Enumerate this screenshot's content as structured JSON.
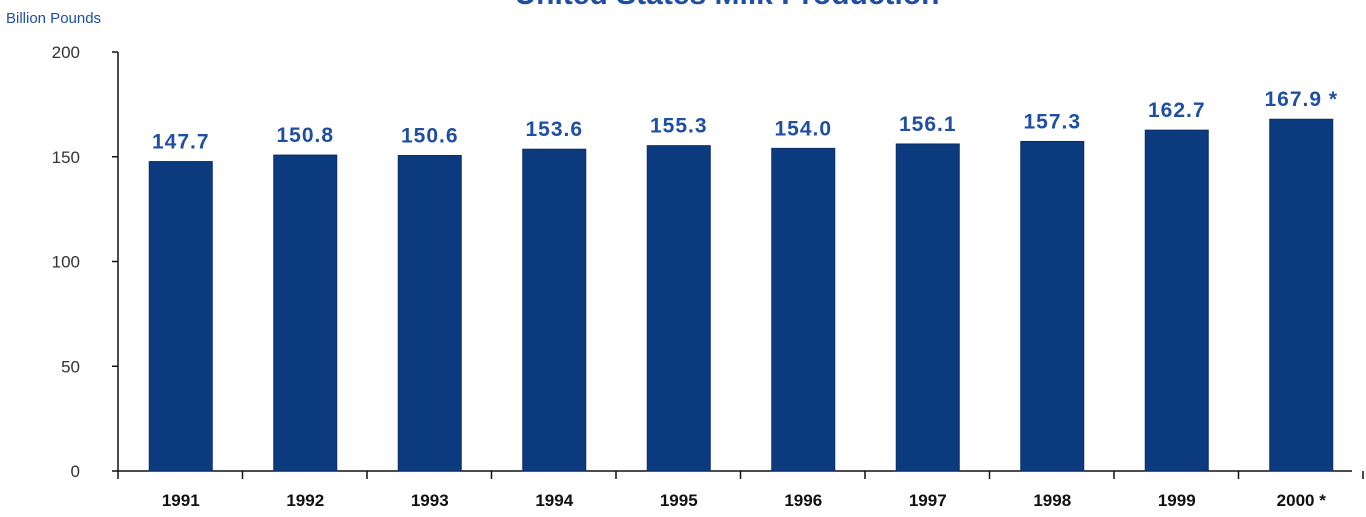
{
  "chart_data": {
    "type": "bar",
    "title": "United States Milk Production",
    "ylabel": "Billion Pounds",
    "xlabel": "",
    "categories": [
      "1991",
      "1992",
      "1993",
      "1994",
      "1995",
      "1996",
      "1997",
      "1998",
      "1999",
      "2000 *"
    ],
    "values": [
      147.7,
      150.8,
      150.6,
      153.6,
      155.3,
      154.0,
      156.1,
      157.3,
      162.7,
      167.9
    ],
    "data_labels": [
      "147.7",
      "150.8",
      "150.6",
      "153.6",
      "155.3",
      "154.0",
      "156.1",
      "157.3",
      "162.7",
      "167.9 *"
    ],
    "ylim": [
      0,
      200
    ],
    "yticks": [
      0,
      50,
      100,
      150,
      200
    ],
    "grid": false,
    "legend": "none"
  },
  "colors": {
    "bar": "#0b3a7e",
    "bar_edge": "#0a2f66",
    "title": "#1f4fa3",
    "label": "#1f4fa3",
    "axis": "#111111",
    "ytick": "#333333",
    "xtick": "#111111"
  }
}
